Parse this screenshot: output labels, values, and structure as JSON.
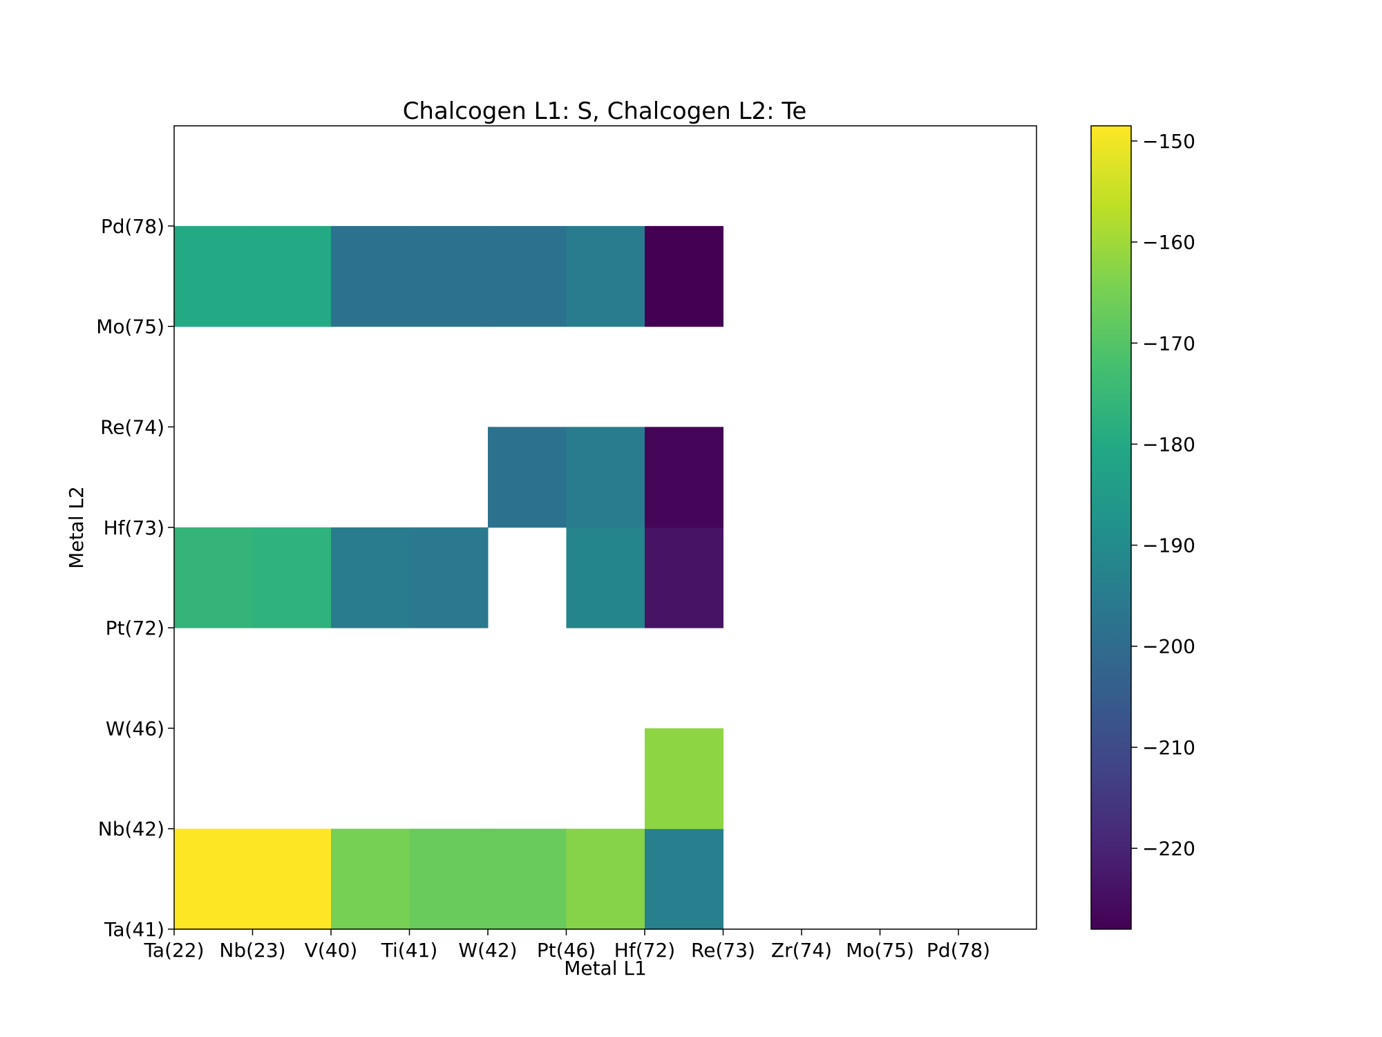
{
  "chart_data": {
    "type": "heatmap",
    "title": "Chalcogen L1: S, Chalcogen L2: Te",
    "xlabel": "Metal L1",
    "ylabel": "Metal L2",
    "x_labels": [
      "Ta(22)",
      "Nb(23)",
      "V(40)",
      "Ti(41)",
      "W(42)",
      "Pt(46)",
      "Hf(72)",
      "Re(73)",
      "Zr(74)",
      "Mo(75)",
      "Pd(78)"
    ],
    "y_labels": [
      "Ta(41)",
      "Nb(42)",
      "W(46)",
      "Pt(72)",
      "Hf(73)",
      "Re(74)",
      "Mo(75)",
      "Pd(78)"
    ],
    "grid": false,
    "colormap": "viridis",
    "colorbar": {
      "vmin": -228,
      "vmax": -148.5,
      "ticks": [
        -150,
        -160,
        -170,
        -180,
        -190,
        -200,
        -210,
        -220
      ],
      "tick_labels": [
        "−150",
        "−160",
        "−170",
        "−180",
        "−190",
        "−200",
        "−210",
        "−220"
      ]
    },
    "cells": [
      {
        "x": "Ta(22)",
        "y": "Ta(41)",
        "value": -148.5
      },
      {
        "x": "Nb(23)",
        "y": "Ta(41)",
        "value": -148.5
      },
      {
        "x": "V(40)",
        "y": "Ta(41)",
        "value": -165
      },
      {
        "x": "Ti(41)",
        "y": "Ta(41)",
        "value": -167
      },
      {
        "x": "W(42)",
        "y": "Ta(41)",
        "value": -167
      },
      {
        "x": "Pt(46)",
        "y": "Ta(41)",
        "value": -163
      },
      {
        "x": "Hf(72)",
        "y": "Ta(41)",
        "value": -194
      },
      {
        "x": "Hf(72)",
        "y": "Nb(42)",
        "value": -162
      },
      {
        "x": "Ta(22)",
        "y": "Pt(72)",
        "value": -176
      },
      {
        "x": "Nb(23)",
        "y": "Pt(72)",
        "value": -177
      },
      {
        "x": "V(40)",
        "y": "Pt(72)",
        "value": -195
      },
      {
        "x": "Ti(41)",
        "y": "Pt(72)",
        "value": -196
      },
      {
        "x": "Pt(46)",
        "y": "Pt(72)",
        "value": -192
      },
      {
        "x": "Hf(72)",
        "y": "Pt(72)",
        "value": -224
      },
      {
        "x": "W(42)",
        "y": "Hf(73)",
        "value": -198
      },
      {
        "x": "Pt(46)",
        "y": "Hf(73)",
        "value": -195
      },
      {
        "x": "Hf(72)",
        "y": "Hf(73)",
        "value": -227
      },
      {
        "x": "Ta(22)",
        "y": "Mo(75)",
        "value": -180
      },
      {
        "x": "Nb(23)",
        "y": "Mo(75)",
        "value": -180
      },
      {
        "x": "V(40)",
        "y": "Mo(75)",
        "value": -198
      },
      {
        "x": "Ti(41)",
        "y": "Mo(75)",
        "value": -198
      },
      {
        "x": "W(42)",
        "y": "Mo(75)",
        "value": -198
      },
      {
        "x": "Pt(46)",
        "y": "Mo(75)",
        "value": -195
      },
      {
        "x": "Hf(72)",
        "y": "Mo(75)",
        "value": -228
      }
    ]
  }
}
